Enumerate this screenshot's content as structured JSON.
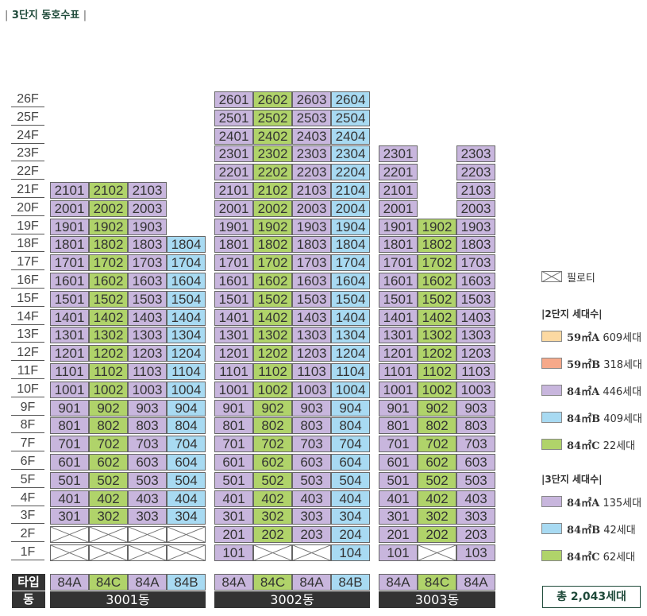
{
  "title": "3단지 동호수표",
  "colors": {
    "84A": "#c8b6dd",
    "84B": "#a8daf2",
    "84C": "#b0d36a",
    "59A": "#fcd9a2",
    "59B": "#f6a98a",
    "accent": "#1f4a3a"
  },
  "floors": [
    "26F",
    "25F",
    "24F",
    "23F",
    "22F",
    "21F",
    "20F",
    "19F",
    "18F",
    "17F",
    "16F",
    "15F",
    "14F",
    "13F",
    "12F",
    "11F",
    "10F",
    "9F",
    "8F",
    "7F",
    "6F",
    "5F",
    "4F",
    "3F",
    "2F",
    "1F"
  ],
  "row_labels": {
    "type": "타입",
    "dong": "동"
  },
  "buildings": [
    {
      "name": "3001동",
      "types": [
        "84A",
        "84C",
        "84A",
        "84B"
      ],
      "line_tops": [
        21,
        21,
        21,
        18
      ]
    },
    {
      "name": "3002동",
      "types": [
        "84A",
        "84C",
        "84A",
        "84B"
      ],
      "line_tops": [
        26,
        26,
        26,
        26
      ]
    },
    {
      "name": "3003동",
      "types": [
        "84A",
        "84C",
        "84A"
      ],
      "line_tops": [
        23,
        19,
        23
      ]
    }
  ],
  "special_cells": {
    "3001동": {
      "2": [
        "pil",
        "pil",
        "pil",
        "pil"
      ],
      "1": [
        "pil",
        "pil",
        "pil",
        "pil"
      ]
    },
    "3002동": {
      "1": [
        "101",
        "pil",
        "pil",
        "104"
      ]
    },
    "3003동": {
      "23": [
        "2301",
        "",
        "2303"
      ],
      "22": [
        "2201",
        "",
        "2203"
      ],
      "21": [
        "2101",
        "",
        "2103"
      ],
      "20": [
        "2001",
        "",
        "2003"
      ],
      "1": [
        "101",
        "pil",
        "103"
      ]
    }
  },
  "legend": {
    "piloti": "필로티",
    "complex2_title": "2단지 세대수",
    "complex2": [
      {
        "type": "59㎡A",
        "count": "609세대",
        "color": "#fcd9a2"
      },
      {
        "type": "59㎡B",
        "count": "318세대",
        "color": "#f6a98a"
      },
      {
        "type": "84㎡A",
        "count": "446세대",
        "color": "#c8b6dd"
      },
      {
        "type": "84㎡B",
        "count": "409세대",
        "color": "#a8daf2"
      },
      {
        "type": "84㎡C",
        "count": "22세대",
        "color": "#b0d36a"
      }
    ],
    "complex3_title": "3단지 세대수",
    "complex3": [
      {
        "type": "84㎡A",
        "count": "135세대",
        "color": "#c8b6dd"
      },
      {
        "type": "84㎡B",
        "count": "42세대",
        "color": "#a8daf2"
      },
      {
        "type": "84㎡C",
        "count": "62세대",
        "color": "#b0d36a"
      }
    ]
  },
  "total": "총 2,043세대"
}
